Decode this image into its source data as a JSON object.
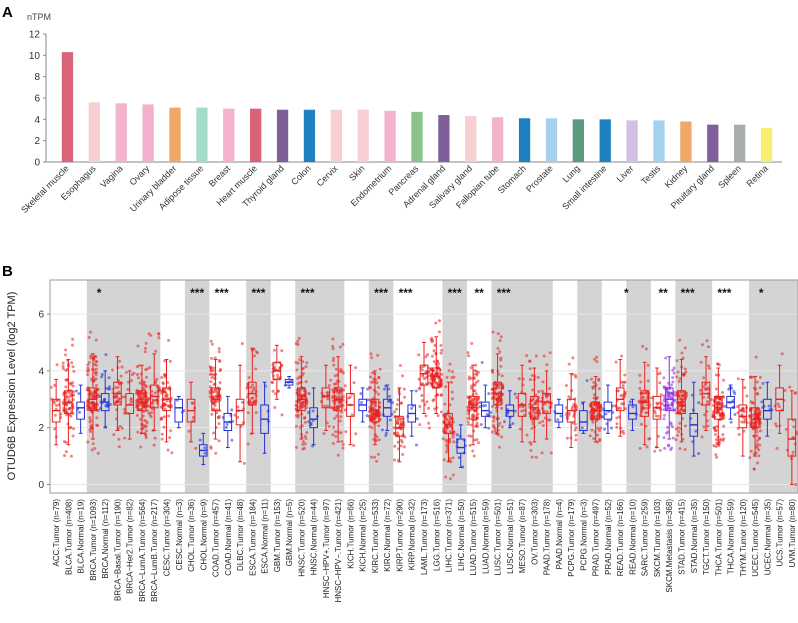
{
  "panel_labels": [
    "A",
    "B"
  ],
  "chart_data": [
    {
      "type": "bar",
      "panel": "A",
      "title": "",
      "ylabel": "nTPM",
      "xlabel": "",
      "ylim": [
        0,
        12
      ],
      "yticks": [
        0,
        2,
        4,
        6,
        8,
        10,
        12
      ],
      "grid": false,
      "categories": [
        "Skeletal muscle",
        "Esophagus",
        "Vagina",
        "Ovary",
        "Urinary bladder",
        "Adipose tissue",
        "Breast",
        "Heart muscle",
        "Thyroid gland",
        "Colon",
        "Cervix",
        "Skin",
        "Endometrium",
        "Pancreas",
        "Adrenal gland",
        "Salivary gland",
        "Fallopian tube",
        "Stomach",
        "Prostate",
        "Lung",
        "Small intestine",
        "Liver",
        "Testis",
        "Kidney",
        "Pituitary gland",
        "Spleen",
        "Retina"
      ],
      "values": [
        10.3,
        5.6,
        5.5,
        5.4,
        5.1,
        5.1,
        5.0,
        5.0,
        4.9,
        4.9,
        4.9,
        4.9,
        4.8,
        4.7,
        4.4,
        4.3,
        4.2,
        4.1,
        4.1,
        4.0,
        4.0,
        3.9,
        3.9,
        3.8,
        3.5,
        3.5,
        3.2
      ],
      "colors": [
        "#d9647a",
        "#f7cfd3",
        "#f3b3cd",
        "#f2b0cc",
        "#f0a868",
        "#a3dccb",
        "#f3b3cd",
        "#d9647a",
        "#7f5f99",
        "#1f82c0",
        "#f7cfd3",
        "#f7cfd3",
        "#f3b3cd",
        "#8cc38c",
        "#7f5f99",
        "#f7cfd3",
        "#f3b3cd",
        "#1f82c0",
        "#a6d1ee",
        "#5a9a7f",
        "#1f82c0",
        "#d1c2e3",
        "#a6d1ee",
        "#f0a868",
        "#7f5f99",
        "#a8adab",
        "#f7ee72"
      ]
    },
    {
      "type": "box",
      "panel": "B",
      "ylabel": "OTUD6B Expression Level (log2 TPM)",
      "ylim": [
        -0.3,
        7.2
      ],
      "yticks": [
        0,
        2,
        4,
        6
      ],
      "grid": true,
      "x": [
        "ACC.Tumor (n=79)",
        "BLCA.Tumor (n=408)",
        "BLCA.Normal (n=19)",
        "BRCA.Tumor (n=1093)",
        "BRCA.Normal (n=112)",
        "BRCA−Basal.Tumor (n=190)",
        "BRCA−Her2.Tumor (n=82)",
        "BRCA−LumA.Tumor (n=564)",
        "BRCA−LumB.Tumor (n=217)",
        "CESC.Tumor (n=304)",
        "CESC.Normal (n=3)",
        "CHOL.Tumor (n=36)",
        "CHOL.Normal (n=9)",
        "COAD.Tumor (n=457)",
        "COAD.Normal (n=41)",
        "DLBC.Tumor (n=48)",
        "ESCA.Tumor (n=184)",
        "ESCA.Normal (n=11)",
        "GBM.Tumor (n=153)",
        "GBM.Normal (n=5)",
        "HNSC.Tumor (n=520)",
        "HNSC.Normal (n=44)",
        "HNSC−HPV+.Tumor (n=97)",
        "HNSC−HPV−.Tumor (n=421)",
        "KICH.Tumor (n=66)",
        "KICH.Normal (n=25)",
        "KIRC.Tumor (n=533)",
        "KIRC.Normal (n=72)",
        "KIRP.Tumor (n=290)",
        "KIRP.Normal (n=32)",
        "LAML.Tumor (n=173)",
        "LGG.Tumor (n=516)",
        "LIHC.Tumor (n=371)",
        "LIHC.Normal (n=50)",
        "LUAD.Tumor (n=515)",
        "LUAD.Normal (n=59)",
        "LUSC.Tumor (n=501)",
        "LUSC.Normal (n=51)",
        "MESO.Tumor (n=87)",
        "OV.Tumor (n=303)",
        "PAAD.Tumor (n=178)",
        "PAAD.Normal (n=4)",
        "PCPG.Tumor (n=179)",
        "PCPG.Normal (n=3)",
        "PRAD.Tumor (n=497)",
        "PRAD.Normal (n=52)",
        "READ.Tumor (n=166)",
        "READ.Normal (n=10)",
        "SARC.Tumor (n=259)",
        "SKCM.Tumor (n=103)",
        "SKCM.Metastasis (n=368)",
        "STAD.Tumor (n=415)",
        "STAD.Normal (n=35)",
        "TGCT.Tumor (n=150)",
        "THCA.Tumor (n=501)",
        "THCA.Normal (n=59)",
        "THYM.Tumor (n=120)",
        "UCEC.Tumor (n=545)",
        "UCEC.Normal (n=35)",
        "UCS.Tumor (n=57)",
        "UVM.Tumor (n=80)"
      ],
      "groups": [
        "t",
        "t",
        "n",
        "t",
        "n",
        "t",
        "t",
        "t",
        "t",
        "t",
        "n",
        "t",
        "n",
        "t",
        "n",
        "t",
        "t",
        "n",
        "t",
        "n",
        "t",
        "n",
        "t",
        "t",
        "t",
        "n",
        "t",
        "n",
        "t",
        "n",
        "t",
        "t",
        "t",
        "n",
        "t",
        "n",
        "t",
        "n",
        "t",
        "t",
        "t",
        "n",
        "t",
        "n",
        "t",
        "n",
        "t",
        "n",
        "t",
        "t",
        "m",
        "t",
        "n",
        "t",
        "t",
        "n",
        "t",
        "t",
        "n",
        "t",
        "t"
      ],
      "medians": [
        2.6,
        2.9,
        2.7,
        3.0,
        2.9,
        3.2,
        2.8,
        2.9,
        3.1,
        3.0,
        2.7,
        2.6,
        1.2,
        3.0,
        2.2,
        2.6,
        3.2,
        2.3,
        4.0,
        3.6,
        3.0,
        2.3,
        3.1,
        3.0,
        2.8,
        2.8,
        2.6,
        2.7,
        2.0,
        2.5,
        3.9,
        3.8,
        2.1,
        1.3,
        2.7,
        2.6,
        3.2,
        2.6,
        2.8,
        2.7,
        2.9,
        2.5,
        2.6,
        2.2,
        2.6,
        2.6,
        3.0,
        2.5,
        2.9,
        2.7,
        3.0,
        2.9,
        2.1,
        3.2,
        2.7,
        2.9,
        2.4,
        2.3,
        2.6,
        3.0,
        1.6
      ],
      "q1": [
        2.2,
        2.5,
        2.3,
        2.6,
        2.6,
        2.8,
        2.5,
        2.6,
        2.7,
        2.6,
        2.2,
        2.2,
        1.0,
        2.6,
        1.9,
        2.1,
        2.8,
        1.8,
        3.7,
        3.5,
        2.6,
        2.0,
        2.7,
        2.6,
        2.4,
        2.6,
        2.2,
        2.4,
        1.7,
        2.2,
        3.5,
        3.4,
        1.8,
        1.1,
        2.3,
        2.4,
        2.8,
        2.4,
        2.4,
        2.3,
        2.5,
        2.2,
        2.2,
        1.9,
        2.3,
        2.3,
        2.6,
        2.3,
        2.4,
        2.3,
        2.6,
        2.5,
        1.7,
        2.8,
        2.3,
        2.7,
        2.0,
        2.0,
        2.3,
        2.6,
        1.0
      ],
      "q3": [
        3.0,
        3.3,
        2.9,
        3.4,
        3.2,
        3.6,
        3.2,
        3.3,
        3.5,
        3.4,
        3.0,
        3.0,
        1.4,
        3.4,
        2.5,
        3.0,
        3.6,
        2.8,
        4.3,
        3.7,
        3.4,
        2.7,
        3.4,
        3.4,
        3.2,
        3.0,
        3.0,
        3.0,
        2.4,
        2.8,
        4.2,
        4.1,
        2.5,
        1.6,
        3.1,
        2.9,
        3.6,
        2.8,
        3.2,
        3.1,
        3.2,
        2.8,
        3.0,
        2.6,
        2.9,
        2.9,
        3.4,
        2.8,
        3.3,
        3.1,
        3.4,
        3.3,
        2.5,
        3.6,
        3.1,
        3.1,
        2.8,
        2.7,
        3.0,
        3.4,
        2.3
      ],
      "lower_whiskers": [
        1.4,
        1.4,
        1.8,
        1.6,
        2.0,
        1.9,
        1.6,
        1.8,
        1.9,
        1.5,
        2.0,
        1.5,
        0.7,
        1.6,
        1.3,
        0.8,
        1.8,
        1.1,
        3.0,
        3.4,
        1.6,
        1.4,
        1.9,
        1.5,
        1.4,
        2.2,
        1.4,
        1.9,
        0.8,
        1.7,
        2.5,
        2.5,
        0.8,
        0.6,
        1.4,
        2.0,
        1.8,
        2.0,
        1.5,
        1.5,
        1.6,
        2.0,
        1.3,
        1.8,
        1.5,
        1.8,
        1.7,
        1.9,
        1.4,
        1.3,
        1.6,
        1.5,
        1.0,
        1.9,
        1.4,
        2.3,
        1.0,
        1.0,
        1.7,
        1.8,
        0.0
      ],
      "upper_whiskers": [
        3.7,
        4.4,
        3.5,
        4.6,
        4.0,
        4.5,
        4.0,
        4.2,
        4.6,
        4.4,
        3.1,
        3.6,
        1.8,
        4.4,
        3.1,
        4.2,
        4.8,
        3.6,
        4.9,
        3.8,
        4.5,
        3.4,
        4.2,
        4.5,
        4.2,
        3.4,
        4.0,
        3.5,
        3.4,
        3.3,
        5.0,
        5.2,
        3.6,
        2.1,
        4.2,
        3.5,
        4.6,
        3.3,
        4.2,
        4.1,
        4.0,
        3.0,
        3.9,
        2.9,
        3.8,
        3.5,
        4.4,
        3.0,
        4.3,
        4.1,
        4.5,
        4.4,
        3.6,
        4.5,
        4.1,
        3.5,
        3.7,
        3.8,
        3.6,
        4.2,
        3.3
      ],
      "significance": [
        {
          "pair": [
            3,
            4
          ],
          "label": "*"
        },
        {
          "pair": [
            11,
            12
          ],
          "label": "***"
        },
        {
          "pair": [
            13,
            14
          ],
          "label": "***"
        },
        {
          "pair": [
            16,
            17
          ],
          "label": "***"
        },
        {
          "pair": [
            20,
            21
          ],
          "label": "***"
        },
        {
          "pair": [
            26,
            27
          ],
          "label": "***"
        },
        {
          "pair": [
            28,
            29
          ],
          "label": "***"
        },
        {
          "pair": [
            32,
            33
          ],
          "label": "***"
        },
        {
          "pair": [
            34,
            35
          ],
          "label": "**"
        },
        {
          "pair": [
            36,
            37
          ],
          "label": "***"
        },
        {
          "pair": [
            46,
            47
          ],
          "label": "*"
        },
        {
          "pair": [
            49,
            50
          ],
          "label": "**"
        },
        {
          "pair": [
            51,
            52
          ],
          "label": "***"
        },
        {
          "pair": [
            54,
            55
          ],
          "label": "***"
        },
        {
          "pair": [
            57,
            58
          ],
          "label": "*"
        }
      ],
      "shaded_cancer_blocks": [
        1,
        3,
        9,
        11,
        13,
        16,
        18,
        20,
        24,
        26,
        28,
        32,
        34,
        36,
        41,
        43,
        45,
        47,
        49,
        51,
        54,
        57
      ]
    }
  ],
  "colors": {
    "tumor": "#e8201f",
    "normal": "#2430d8",
    "metastasis": "#8a2be2",
    "shade": "#d4d4d4",
    "grid": "#e2e2e2"
  }
}
